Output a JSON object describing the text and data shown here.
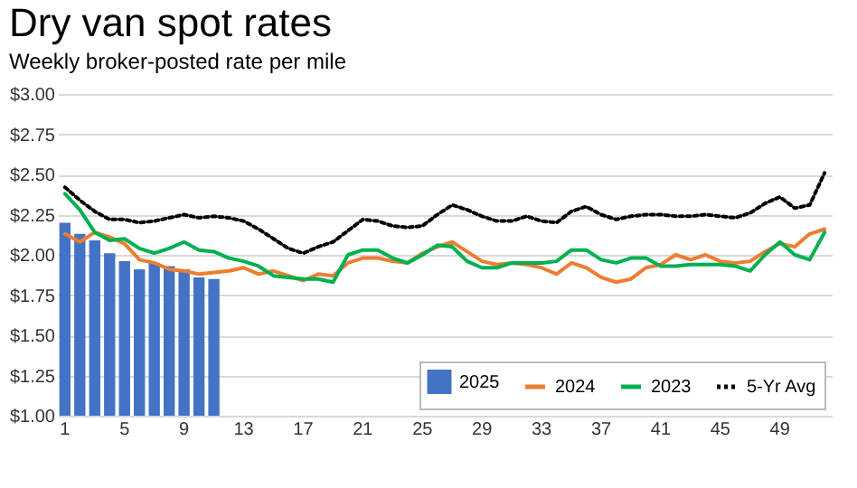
{
  "chart_data": {
    "type": "line",
    "title": "Dry van spot rates",
    "subtitle": "Weekly broker-posted rate per mile",
    "categories": [
      "1",
      null,
      null,
      null,
      "5",
      null,
      null,
      null,
      "9",
      null,
      null,
      null,
      "13",
      null,
      null,
      null,
      "17",
      null,
      null,
      null,
      "21",
      null,
      null,
      null,
      "25",
      null,
      null,
      null,
      "29",
      null,
      null,
      null,
      "33",
      null,
      null,
      null,
      "37",
      null,
      null,
      null,
      "41",
      null,
      null,
      null,
      "45",
      null,
      null,
      null,
      "49",
      null,
      null,
      null
    ],
    "series": [
      {
        "name": "2025",
        "type": "bar",
        "color": "#4472c4",
        "values": [
          2.2,
          2.13,
          2.09,
          2.01,
          1.96,
          1.91,
          1.95,
          1.93,
          1.91,
          1.86,
          1.85,
          null,
          null,
          null,
          null,
          null,
          null,
          null,
          null,
          null,
          null,
          null,
          null,
          null,
          null,
          null,
          null,
          null,
          null,
          null,
          null,
          null,
          null,
          null,
          null,
          null,
          null,
          null,
          null,
          null,
          null,
          null,
          null,
          null,
          null,
          null,
          null,
          null,
          null,
          null,
          null,
          null
        ]
      },
      {
        "name": "2024",
        "color": "#ed7d31",
        "line_style": "solid",
        "values": [
          2.13,
          2.08,
          2.14,
          2.11,
          2.07,
          1.97,
          1.95,
          1.91,
          1.9,
          1.88,
          1.89,
          1.9,
          1.92,
          1.88,
          1.9,
          1.87,
          1.84,
          1.88,
          1.87,
          1.95,
          1.98,
          1.98,
          1.96,
          1.95,
          2.01,
          2.05,
          2.08,
          2.02,
          1.96,
          1.94,
          1.95,
          1.94,
          1.92,
          1.88,
          1.95,
          1.92,
          1.86,
          1.83,
          1.85,
          1.92,
          1.94,
          2.0,
          1.97,
          2.0,
          1.96,
          1.95,
          1.96,
          2.02,
          2.07,
          2.05,
          2.13,
          2.16
        ]
      },
      {
        "name": "2023",
        "color": "#00b050",
        "line_style": "solid",
        "values": [
          2.38,
          2.28,
          2.14,
          2.09,
          2.1,
          2.04,
          2.01,
          2.04,
          2.08,
          2.03,
          2.02,
          1.98,
          1.96,
          1.93,
          1.87,
          1.86,
          1.85,
          1.85,
          1.83,
          2.0,
          2.03,
          2.03,
          1.98,
          1.95,
          2.0,
          2.06,
          2.05,
          1.96,
          1.92,
          1.92,
          1.95,
          1.95,
          1.95,
          1.96,
          2.03,
          2.03,
          1.97,
          1.95,
          1.98,
          1.98,
          1.93,
          1.93,
          1.94,
          1.94,
          1.94,
          1.93,
          1.9,
          2.0,
          2.08,
          2.0,
          1.97,
          2.14
        ]
      },
      {
        "name": "5-Yr Avg",
        "color": "#000000",
        "line_style": "dotted",
        "values": [
          2.42,
          2.34,
          2.27,
          2.22,
          2.22,
          2.2,
          2.21,
          2.23,
          2.25,
          2.23,
          2.24,
          2.23,
          2.21,
          2.16,
          2.1,
          2.04,
          2.01,
          2.05,
          2.08,
          2.15,
          2.22,
          2.21,
          2.18,
          2.17,
          2.18,
          2.25,
          2.31,
          2.28,
          2.24,
          2.21,
          2.21,
          2.24,
          2.21,
          2.2,
          2.27,
          2.3,
          2.25,
          2.22,
          2.24,
          2.25,
          2.25,
          2.24,
          2.24,
          2.25,
          2.24,
          2.23,
          2.26,
          2.32,
          2.36,
          2.29,
          2.31,
          2.51
        ]
      }
    ],
    "ylim": [
      1,
      3
    ],
    "yticks": [
      {
        "value": 1,
        "label": "$1.00"
      },
      {
        "value": 1.25,
        "label": "$1.25"
      },
      {
        "value": 1.5,
        "label": "$1.50"
      },
      {
        "value": 1.75,
        "label": "$1.75"
      },
      {
        "value": 2,
        "label": "$2.00"
      },
      {
        "value": 2.25,
        "label": "$2.25"
      },
      {
        "value": 2.5,
        "label": "$2.50"
      },
      {
        "value": 2.75,
        "label": "$2.75"
      },
      {
        "value": 3,
        "label": "$3.00"
      }
    ],
    "grid": "y",
    "legend": "bottom right"
  }
}
